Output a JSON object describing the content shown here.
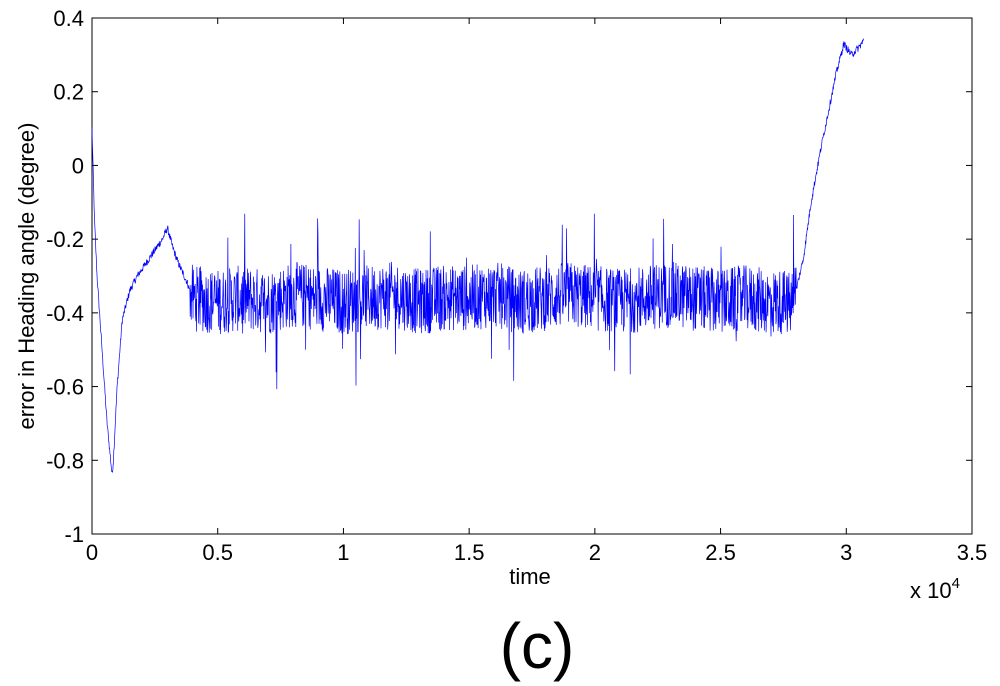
{
  "chart_data": {
    "type": "line",
    "xlabel": "time",
    "ylabel": "error in Heading angle (degree)",
    "x_multiplier_label": "x 10",
    "x_multiplier_exponent": "4",
    "panel_label": "(c)",
    "xlim": [
      0,
      35000
    ],
    "ylim": [
      -1,
      0.4
    ],
    "xticks": [
      0,
      5000,
      10000,
      15000,
      20000,
      25000,
      30000,
      35000
    ],
    "xtick_labels": [
      "0",
      "0.5",
      "1",
      "1.5",
      "2",
      "2.5",
      "3",
      "3.5"
    ],
    "yticks": [
      -1,
      -0.8,
      -0.6,
      -0.4,
      -0.2,
      0,
      0.2,
      0.4
    ],
    "ytick_labels": [
      "-1",
      "-0.8",
      "-0.6",
      "-0.4",
      "-0.2",
      "0",
      "0.2",
      "0.4"
    ],
    "grid": false,
    "series": [
      {
        "color": "#0000ff",
        "x": [
          0,
          100,
          200,
          400,
          600,
          800,
          850,
          1000,
          1200,
          1500,
          1800,
          2000,
          2200,
          2500,
          2800,
          3000,
          3200,
          3400,
          3600,
          3800,
          4000,
          5000,
          6000,
          7000,
          8000,
          9000,
          10000,
          11000,
          12000,
          13000,
          14000,
          15000,
          16000,
          17000,
          18000,
          19000,
          20000,
          21000,
          22000,
          23000,
          24000,
          25000,
          26000,
          27000,
          27500,
          27800,
          28000,
          28300,
          28600,
          29000,
          29300,
          29600,
          29900,
          30200,
          30500,
          30700
        ],
        "y": [
          0.1,
          -0.15,
          -0.3,
          -0.5,
          -0.7,
          -0.84,
          -0.8,
          -0.6,
          -0.42,
          -0.34,
          -0.3,
          -0.28,
          -0.26,
          -0.23,
          -0.2,
          -0.17,
          -0.22,
          -0.26,
          -0.29,
          -0.32,
          -0.36,
          -0.37,
          -0.36,
          -0.37,
          -0.35,
          -0.36,
          -0.37,
          -0.36,
          -0.35,
          -0.37,
          -0.36,
          -0.36,
          -0.35,
          -0.37,
          -0.36,
          -0.35,
          -0.36,
          -0.37,
          -0.36,
          -0.35,
          -0.36,
          -0.37,
          -0.36,
          -0.37,
          -0.37,
          -0.38,
          -0.34,
          -0.25,
          -0.1,
          0.05,
          0.15,
          0.25,
          0.33,
          0.3,
          0.32,
          0.34
        ],
        "noise_band": {
          "x_start": 3900,
          "x_end": 28000,
          "amplitude": 0.09,
          "max_excursion": 0.25
        }
      }
    ]
  }
}
